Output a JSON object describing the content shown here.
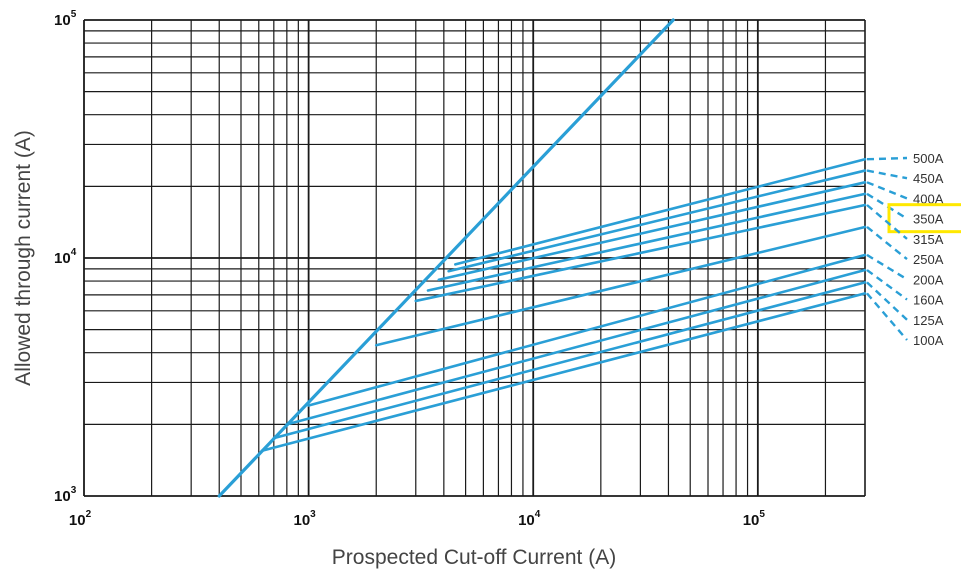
{
  "chart_data": {
    "type": "line",
    "title": "",
    "xlabel": "Prospected Cut-off Current (A)",
    "ylabel": "Allowed through current (A)",
    "x_scale": "log",
    "y_scale": "log",
    "xlim": [
      100,
      300000
    ],
    "ylim": [
      1000,
      100000
    ],
    "grid": true,
    "x_ticks": [
      {
        "value": 100,
        "base": "10",
        "exp": "2"
      },
      {
        "value": 1000,
        "base": "10",
        "exp": "3"
      },
      {
        "value": 10000,
        "base": "10",
        "exp": "4"
      },
      {
        "value": 100000,
        "base": "10",
        "exp": "5"
      }
    ],
    "y_ticks": [
      {
        "value": 1000,
        "base": "10",
        "exp": "3"
      },
      {
        "value": 10000,
        "base": "10",
        "exp": "4"
      },
      {
        "value": 100000,
        "base": "10",
        "exp": "5"
      }
    ],
    "series_color": "#2a9fd6",
    "highlight_color": "#ffe800",
    "highlighted_label": "350A",
    "peak_line": {
      "x": [
        400,
        42000
      ],
      "y": [
        1000,
        100000
      ]
    },
    "series": [
      {
        "name": "500A",
        "x": [
          4500,
          300000
        ],
        "y": [
          9400,
          26000
        ]
      },
      {
        "name": "450A",
        "x": [
          4200,
          300000
        ],
        "y": [
          8800,
          23300
        ]
      },
      {
        "name": "400A",
        "x": [
          3800,
          300000
        ],
        "y": [
          8100,
          20800
        ]
      },
      {
        "name": "350A",
        "x": [
          3400,
          300000
        ],
        "y": [
          7300,
          18600
        ]
      },
      {
        "name": "315A",
        "x": [
          3000,
          300000
        ],
        "y": [
          6600,
          16700
        ]
      },
      {
        "name": "250A",
        "x": [
          2000,
          300000
        ],
        "y": [
          4300,
          13500
        ]
      },
      {
        "name": "200A",
        "x": [
          1000,
          300000
        ],
        "y": [
          2400,
          10300
        ]
      },
      {
        "name": "160A",
        "x": [
          800,
          300000
        ],
        "y": [
          2000,
          8900
        ]
      },
      {
        "name": "125A",
        "x": [
          700,
          300000
        ],
        "y": [
          1750,
          7900
        ]
      },
      {
        "name": "100A",
        "x": [
          620,
          300000
        ],
        "y": [
          1550,
          7100
        ]
      }
    ]
  }
}
